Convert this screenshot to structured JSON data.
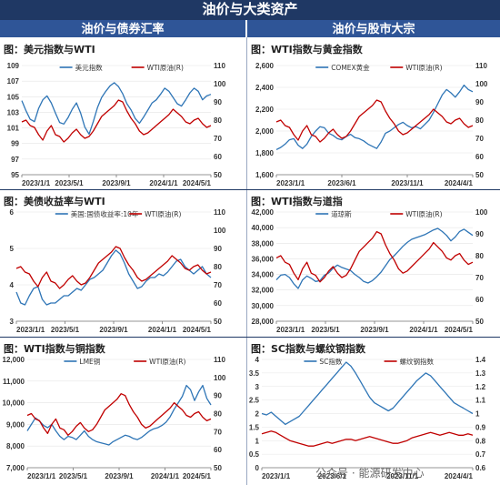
{
  "header": {
    "title": "油价与大类资产",
    "left_section": "油价与债券汇率",
    "right_section": "油价与股市大宗"
  },
  "watermark": "公众号 · 能源研发中心",
  "colors": {
    "blue": "#2e75b6",
    "red": "#c00000",
    "header": "#1f3864",
    "section": "#2f5597"
  },
  "chart_data": [
    {
      "id": "c1",
      "type": "line",
      "title": "图：美元指数与WTI",
      "xticks": [
        "2023/1/1",
        "2023/5/1",
        "2023/9/1",
        "2024/1/1",
        "2024/5/1"
      ],
      "ylim_left": [
        95,
        109
      ],
      "yticks_left": [
        "95",
        "97",
        "99",
        "101",
        "103",
        "105",
        "107",
        "109"
      ],
      "ylim_right": [
        50,
        110
      ],
      "yticks_right": [
        "50",
        "60",
        "70",
        "80",
        "90",
        "100",
        "110"
      ],
      "series": [
        {
          "name": "美元指数",
          "axis": "left",
          "color": "#2e75b6",
          "values": [
            104.5,
            103.2,
            102.1,
            101.8,
            103.5,
            104.6,
            105.1,
            104.2,
            102.9,
            101.7,
            101.5,
            102.3,
            103.4,
            104.2,
            102.9,
            101.1,
            100.2,
            101.8,
            103.6,
            104.9,
            105.7,
            106.4,
            106.8,
            106.3,
            105.4,
            104.1,
            103.3,
            102.2,
            101.6,
            102.4,
            103.3,
            104.2,
            104.6,
            105.3,
            106.1,
            105.7,
            104.9,
            104.1,
            103.8,
            104.6,
            105.5,
            106.1,
            105.7,
            104.6,
            105.1,
            105.3
          ]
        },
        {
          "name": "WTI原油(R)",
          "axis": "right",
          "color": "#c00000",
          "values": [
            79,
            80,
            77,
            76,
            72,
            69,
            74,
            77,
            72,
            71,
            68,
            70,
            73,
            75,
            72,
            70,
            71,
            74,
            78,
            82,
            84,
            86,
            88,
            91,
            90,
            85,
            81,
            78,
            74,
            72,
            73,
            75,
            77,
            79,
            81,
            83,
            86,
            84,
            82,
            79,
            78,
            80,
            81,
            78,
            76,
            77
          ]
        }
      ]
    },
    {
      "id": "c2",
      "type": "line",
      "title": "图：WTI指数与黄金指数",
      "xticks": [
        "2023/1/1",
        "2023/6/1",
        "2023/11/1",
        "2024/4/1"
      ],
      "ylim_left": [
        1600,
        2600
      ],
      "yticks_left": [
        "1,600",
        "1,800",
        "2,000",
        "2,200",
        "2,400",
        "2,600"
      ],
      "ylim_right": [
        50,
        110
      ],
      "yticks_right": [
        "50",
        "60",
        "70",
        "80",
        "90",
        "100",
        "110"
      ],
      "series": [
        {
          "name": "COMEX黄金",
          "axis": "left",
          "color": "#2e75b6",
          "values": [
            1830,
            1850,
            1880,
            1920,
            1930,
            1870,
            1840,
            1880,
            1950,
            2000,
            2040,
            2030,
            1980,
            1960,
            1930,
            1920,
            1950,
            1970,
            1940,
            1930,
            1910,
            1880,
            1860,
            1840,
            1900,
            1980,
            2000,
            2030,
            2060,
            2080,
            2050,
            2030,
            2040,
            2020,
            2060,
            2100,
            2170,
            2250,
            2330,
            2380,
            2350,
            2310,
            2360,
            2420,
            2380,
            2360
          ]
        },
        {
          "name": "WTI原油(R)",
          "axis": "right",
          "color": "#c00000",
          "values": [
            79,
            80,
            77,
            76,
            72,
            69,
            74,
            77,
            72,
            71,
            68,
            70,
            73,
            75,
            72,
            70,
            71,
            74,
            78,
            82,
            84,
            86,
            88,
            91,
            90,
            85,
            81,
            78,
            74,
            72,
            73,
            75,
            77,
            79,
            81,
            83,
            86,
            84,
            82,
            79,
            78,
            80,
            81,
            78,
            76,
            77
          ]
        }
      ]
    },
    {
      "id": "c3",
      "type": "line",
      "title": "图：美债收益率与WTI",
      "xticks": [
        "2023/1/1",
        "2023/5/1",
        "2023/9/1",
        "2024/1/1",
        "2024/5/1"
      ],
      "ylim_left": [
        3,
        6
      ],
      "yticks_left": [
        "3",
        "4",
        "5",
        "6"
      ],
      "ylim_right": [
        50,
        110
      ],
      "yticks_right": [
        "50",
        "60",
        "70",
        "80",
        "90",
        "100",
        "110"
      ],
      "series": [
        {
          "name": "美国:国债收益率:10年",
          "axis": "left",
          "color": "#2e75b6",
          "values": [
            3.8,
            3.5,
            3.45,
            3.7,
            3.9,
            3.95,
            3.6,
            3.45,
            3.5,
            3.5,
            3.6,
            3.7,
            3.7,
            3.8,
            3.9,
            3.85,
            4.0,
            4.15,
            4.2,
            4.3,
            4.4,
            4.6,
            4.8,
            4.95,
            4.85,
            4.6,
            4.3,
            4.1,
            3.9,
            3.95,
            4.1,
            4.2,
            4.2,
            4.3,
            4.25,
            4.35,
            4.5,
            4.65,
            4.7,
            4.5,
            4.4,
            4.3,
            4.4,
            4.5,
            4.3,
            4.2
          ]
        },
        {
          "name": "WTI原油(R)",
          "axis": "right",
          "color": "#c00000",
          "values": [
            79,
            80,
            77,
            76,
            72,
            69,
            74,
            77,
            72,
            71,
            68,
            70,
            73,
            75,
            72,
            70,
            71,
            74,
            78,
            82,
            84,
            86,
            88,
            91,
            90,
            85,
            81,
            78,
            74,
            72,
            73,
            75,
            77,
            79,
            81,
            83,
            86,
            84,
            82,
            79,
            78,
            80,
            81,
            78,
            76,
            77
          ]
        }
      ]
    },
    {
      "id": "c4",
      "type": "line",
      "title": "图：WTI指数与道指",
      "xticks": [
        "2023/1/1",
        "2023/5/1",
        "2023/9/1",
        "2024/1/1",
        "2024/5/1"
      ],
      "ylim_left": [
        28000,
        42000
      ],
      "yticks_left": [
        "28,000",
        "30,000",
        "32,000",
        "34,000",
        "36,000",
        "38,000",
        "40,000",
        "42,000"
      ],
      "ylim_right": [
        50,
        100
      ],
      "yticks_right": [
        "50",
        "60",
        "70",
        "80",
        "90",
        "100"
      ],
      "series": [
        {
          "name": "道琼斯",
          "axis": "left",
          "color": "#2e75b6",
          "values": [
            33300,
            33900,
            34000,
            33600,
            32800,
            32200,
            33300,
            33800,
            33500,
            33100,
            33200,
            33900,
            34200,
            34800,
            35200,
            34900,
            34700,
            34500,
            34000,
            33600,
            33100,
            32900,
            33200,
            33700,
            34300,
            35100,
            35900,
            36400,
            37000,
            37600,
            38100,
            38500,
            38700,
            38900,
            39100,
            39400,
            39700,
            39900,
            39500,
            39000,
            38300,
            38800,
            39500,
            39800,
            39400,
            39000
          ]
        },
        {
          "name": "WTI原油(R)",
          "axis": "right",
          "color": "#c00000",
          "values": [
            79,
            80,
            77,
            76,
            72,
            69,
            74,
            77,
            72,
            71,
            68,
            70,
            73,
            75,
            72,
            70,
            71,
            74,
            78,
            82,
            84,
            86,
            88,
            91,
            90,
            85,
            81,
            78,
            74,
            72,
            73,
            75,
            77,
            79,
            81,
            83,
            86,
            84,
            82,
            79,
            78,
            80,
            81,
            78,
            76,
            77
          ]
        }
      ]
    },
    {
      "id": "c5",
      "type": "line",
      "title": "图：WTI指数与铜指数",
      "xticks": [
        "2023/1/1",
        "2023/5/1",
        "2023/9/1",
        "2024/1/1",
        "2024/5/1"
      ],
      "ylim_left": [
        7000,
        12000
      ],
      "yticks_left": [
        "7,000",
        "8,000",
        "9,000",
        "10,000",
        "11,000",
        "12,000"
      ],
      "ylim_right": [
        50,
        110
      ],
      "yticks_right": [
        "50",
        "60",
        "70",
        "80",
        "90",
        "100",
        "110"
      ],
      "series": [
        {
          "name": "LME铜",
          "axis": "left",
          "color": "#2e75b6",
          "values": [
            8700,
            9000,
            9300,
            9150,
            8950,
            8850,
            9000,
            8700,
            8450,
            8300,
            8450,
            8400,
            8300,
            8500,
            8700,
            8450,
            8300,
            8200,
            8150,
            8100,
            8050,
            8200,
            8300,
            8400,
            8500,
            8450,
            8350,
            8300,
            8400,
            8550,
            8700,
            8800,
            8850,
            8950,
            9100,
            9350,
            9700,
            10000,
            10300,
            10800,
            10600,
            10100,
            10500,
            10800,
            10200,
            9900
          ]
        },
        {
          "name": "WTI原油(R)",
          "axis": "right",
          "color": "#c00000",
          "values": [
            79,
            80,
            77,
            76,
            72,
            69,
            74,
            77,
            72,
            71,
            68,
            70,
            73,
            75,
            72,
            70,
            71,
            74,
            78,
            82,
            84,
            86,
            88,
            91,
            90,
            85,
            81,
            78,
            74,
            72,
            73,
            75,
            77,
            79,
            81,
            83,
            86,
            84,
            82,
            79,
            78,
            80,
            81,
            78,
            76,
            77
          ]
        }
      ]
    },
    {
      "id": "c6",
      "type": "line",
      "title": "图：SC指数与螺纹钢指数",
      "xticks": [
        "2023/1/1",
        "2023/6/1",
        "2023/11/1",
        "2024/4/1"
      ],
      "ylim_left": [
        0,
        4
      ],
      "yticks_left": [
        "0",
        "0.5",
        "1",
        "1.5",
        "2",
        "2.5",
        "3",
        "3.5",
        "4"
      ],
      "ylim_right": [
        0.6,
        1.4
      ],
      "yticks_right": [
        "0.6",
        "0.7",
        "0.8",
        "0.9",
        "1",
        "1.1",
        "1.2",
        "1.3",
        "1.4"
      ],
      "series": [
        {
          "name": "SC指数",
          "axis": "left",
          "color": "#2e75b6",
          "values": [
            2.0,
            1.95,
            2.05,
            1.9,
            1.75,
            1.6,
            1.7,
            1.8,
            1.9,
            2.1,
            2.3,
            2.5,
            2.7,
            2.9,
            3.1,
            3.3,
            3.5,
            3.7,
            3.9,
            3.75,
            3.5,
            3.2,
            2.9,
            2.6,
            2.4,
            2.3,
            2.2,
            2.1,
            2.2,
            2.4,
            2.6,
            2.8,
            3.0,
            3.2,
            3.35,
            3.5,
            3.4,
            3.2,
            3.0,
            2.8,
            2.6,
            2.4,
            2.3,
            2.2,
            2.1,
            2.0
          ]
        },
        {
          "name": "螺纹钢指数",
          "axis": "right",
          "color": "#c00000",
          "values": [
            0.85,
            0.86,
            0.87,
            0.86,
            0.84,
            0.82,
            0.8,
            0.79,
            0.78,
            0.77,
            0.76,
            0.76,
            0.77,
            0.78,
            0.79,
            0.78,
            0.79,
            0.8,
            0.81,
            0.81,
            0.8,
            0.81,
            0.82,
            0.83,
            0.82,
            0.81,
            0.8,
            0.79,
            0.78,
            0.78,
            0.79,
            0.8,
            0.82,
            0.83,
            0.84,
            0.85,
            0.86,
            0.85,
            0.84,
            0.85,
            0.86,
            0.85,
            0.84,
            0.84,
            0.85,
            0.84
          ]
        }
      ]
    }
  ]
}
